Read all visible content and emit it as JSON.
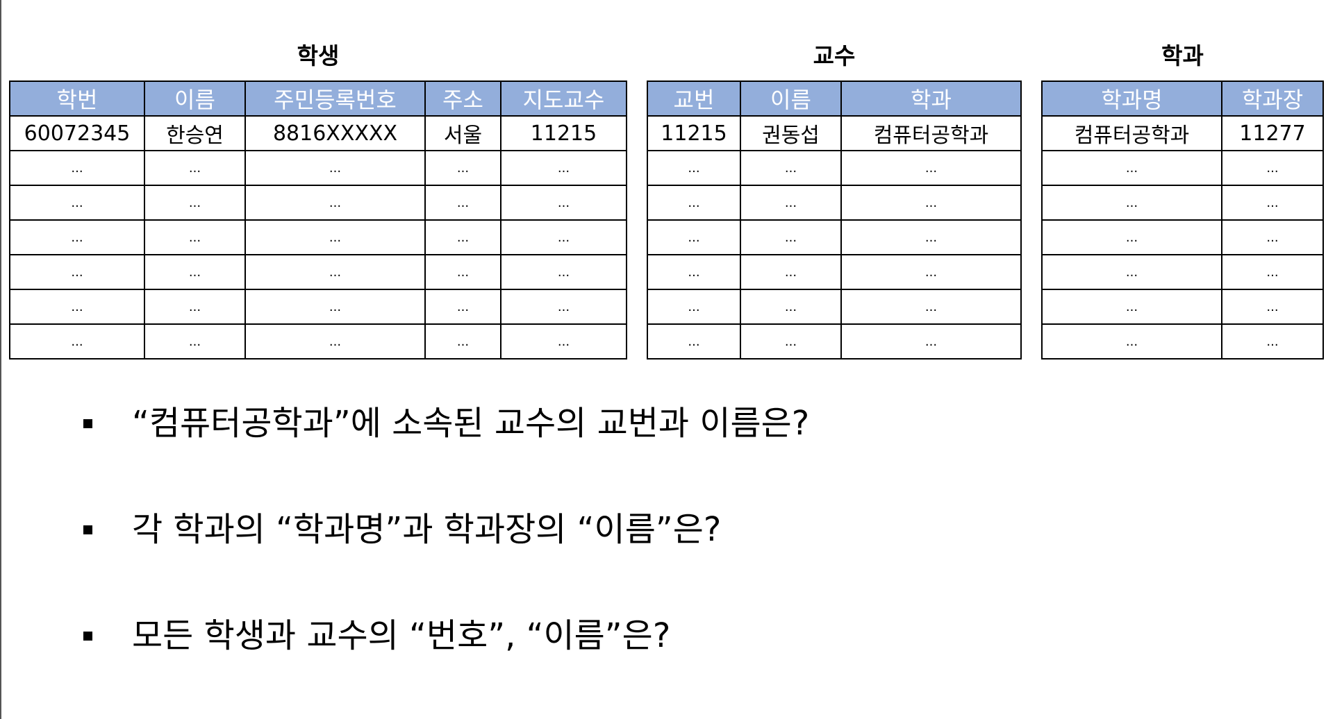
{
  "tables": {
    "student": {
      "title": "학생",
      "columns": [
        "학번",
        "이름",
        "주민등록번호",
        "주소",
        "지도교수"
      ],
      "rows": [
        [
          "60072345",
          "한승연",
          "8816XXXXX",
          "서울",
          "11215"
        ],
        [
          "...",
          "...",
          "...",
          "...",
          "..."
        ],
        [
          "...",
          "...",
          "...",
          "...",
          "..."
        ],
        [
          "...",
          "...",
          "...",
          "...",
          "..."
        ],
        [
          "...",
          "...",
          "...",
          "...",
          "..."
        ],
        [
          "...",
          "...",
          "...",
          "...",
          "..."
        ],
        [
          "...",
          "...",
          "...",
          "...",
          "..."
        ]
      ]
    },
    "professor": {
      "title": "교수",
      "columns": [
        "교번",
        "이름",
        "학과"
      ],
      "rows": [
        [
          "11215",
          "권동섭",
          "컴퓨터공학과"
        ],
        [
          "...",
          "...",
          "..."
        ],
        [
          "...",
          "...",
          "..."
        ],
        [
          "...",
          "...",
          "..."
        ],
        [
          "...",
          "...",
          "..."
        ],
        [
          "...",
          "...",
          "..."
        ],
        [
          "...",
          "...",
          "..."
        ]
      ]
    },
    "department": {
      "title": "학과",
      "columns": [
        "학과명",
        "학과장"
      ],
      "rows": [
        [
          "컴퓨터공학과",
          "11277"
        ],
        [
          "...",
          "..."
        ],
        [
          "...",
          "..."
        ],
        [
          "...",
          "..."
        ],
        [
          "...",
          "..."
        ],
        [
          "...",
          "..."
        ],
        [
          "...",
          "..."
        ]
      ]
    }
  },
  "questions": [
    "“컴퓨터공학과”에 소속된 교수의 교번과 이름은?",
    "각 학과의 “학과명”과 학과장의 “이름”은?",
    "모든 학생과 교수의 “번호”, “이름”은?"
  ],
  "colors": {
    "header_bg": "#93aedb",
    "header_text": "#ffffff",
    "border": "#000000"
  }
}
